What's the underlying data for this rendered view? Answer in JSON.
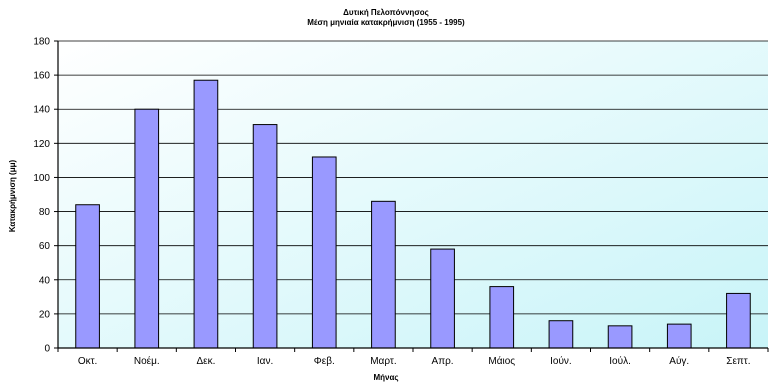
{
  "chart_data": {
    "type": "bar",
    "title": "Δυτική Πελοπόννησος",
    "subtitle": "Μέση μηνιαία κατακρήμνιση (1955 - 1995)",
    "xlabel": "Μήνας",
    "ylabel": "Κατακρήμνιση (μμ)",
    "categories": [
      "Οκτ.",
      "Νοέμ.",
      "Δεκ.",
      "Ιαν.",
      "Φεβ.",
      "Μαρτ.",
      "Απρ.",
      "Μάιος",
      "Ιούν.",
      "Ιούλ.",
      "Αύγ.",
      "Σεπτ."
    ],
    "values": [
      84,
      140,
      157,
      131,
      112,
      86,
      58,
      36,
      16,
      13,
      14,
      32
    ],
    "ylim": [
      0,
      180
    ],
    "yticks": [
      0,
      20,
      40,
      60,
      80,
      100,
      120,
      140,
      160,
      180
    ],
    "grid": true,
    "legend": "none",
    "bar_color": "#9999ff",
    "bar_edge_color": "#000000",
    "plot_bg_top": "#ffffff",
    "plot_bg_bottom": "#c8f4f8"
  }
}
